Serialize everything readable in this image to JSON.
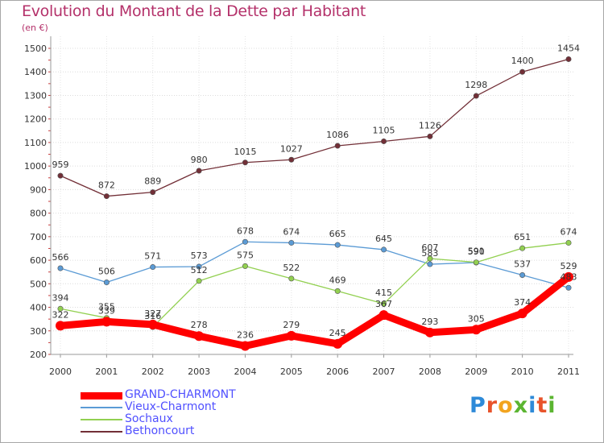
{
  "title": "Evolution du Montant de la Dette par Habitant",
  "subtitle": "(en €)",
  "logo_text": "Proxiti",
  "chart_data": {
    "type": "line",
    "title": "Evolution du Montant de la Dette par Habitant",
    "subtitle": "(en €)",
    "xlabel": "",
    "ylabel": "",
    "x": [
      "2000",
      "2001",
      "2002",
      "2003",
      "2004",
      "2005",
      "2006",
      "2007",
      "2008",
      "2009",
      "2010",
      "2011"
    ],
    "ylim": [
      200,
      1500
    ],
    "yticks": [
      200,
      300,
      400,
      500,
      600,
      700,
      800,
      900,
      1000,
      1100,
      1200,
      1300,
      1400,
      1500
    ],
    "grid": true,
    "legend_position": "bottom-left",
    "series": [
      {
        "name": "GRAND-CHARMONT",
        "color": "#ff0000",
        "values": [
          322,
          339,
          327,
          278,
          236,
          279,
          245,
          367,
          293,
          305,
          374,
          529
        ]
      },
      {
        "name": "Vieux-Charmont",
        "color": "#5b9bd5",
        "values": [
          566,
          506,
          571,
          573,
          678,
          674,
          665,
          645,
          583,
          590,
          537,
          483
        ]
      },
      {
        "name": "Sochaux",
        "color": "#92d050",
        "values": [
          394,
          355,
          316,
          512,
          575,
          522,
          469,
          415,
          607,
          591,
          651,
          674
        ]
      },
      {
        "name": "Bethoncourt",
        "color": "#722f37",
        "values": [
          959,
          872,
          889,
          980,
          1015,
          1027,
          1086,
          1105,
          1126,
          1298,
          1400,
          1454
        ]
      }
    ]
  }
}
